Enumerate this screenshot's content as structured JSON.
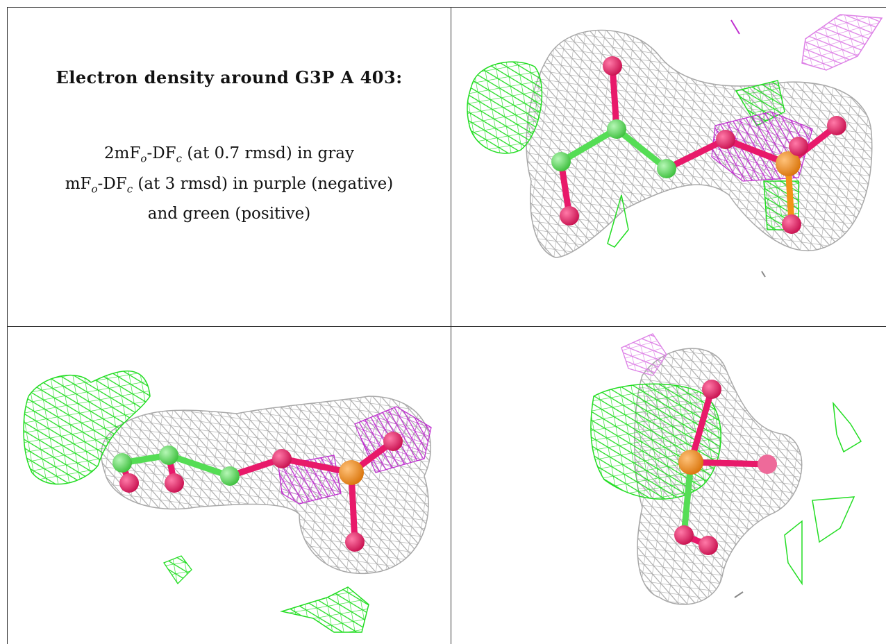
{
  "title": "Electron density around G3P A 403:",
  "legend": {
    "line1": {
      "prefix": "2mF",
      "sub1": "o",
      "mid": "-DF",
      "sub2": "c",
      "suffix": " (at 0.7 rmsd) in gray"
    },
    "line2": {
      "prefix": "mF",
      "sub1": "o",
      "mid": "-DF",
      "sub2": "c",
      "suffix": " (at 3 rmsd) in purple (negative)"
    },
    "line3": "and green (positive)"
  },
  "colors": {
    "mesh_gray": "#a8a8a8",
    "mesh_purple": "#c030d0",
    "mesh_purple_light": "#dd80e6",
    "mesh_green": "#22dd22",
    "carbon": "#55dd55",
    "oxygen": "#e8196a",
    "phosphorus": "#f29318"
  },
  "icons": [
    "view-1-render",
    "view-2-render",
    "view-3-render"
  ]
}
